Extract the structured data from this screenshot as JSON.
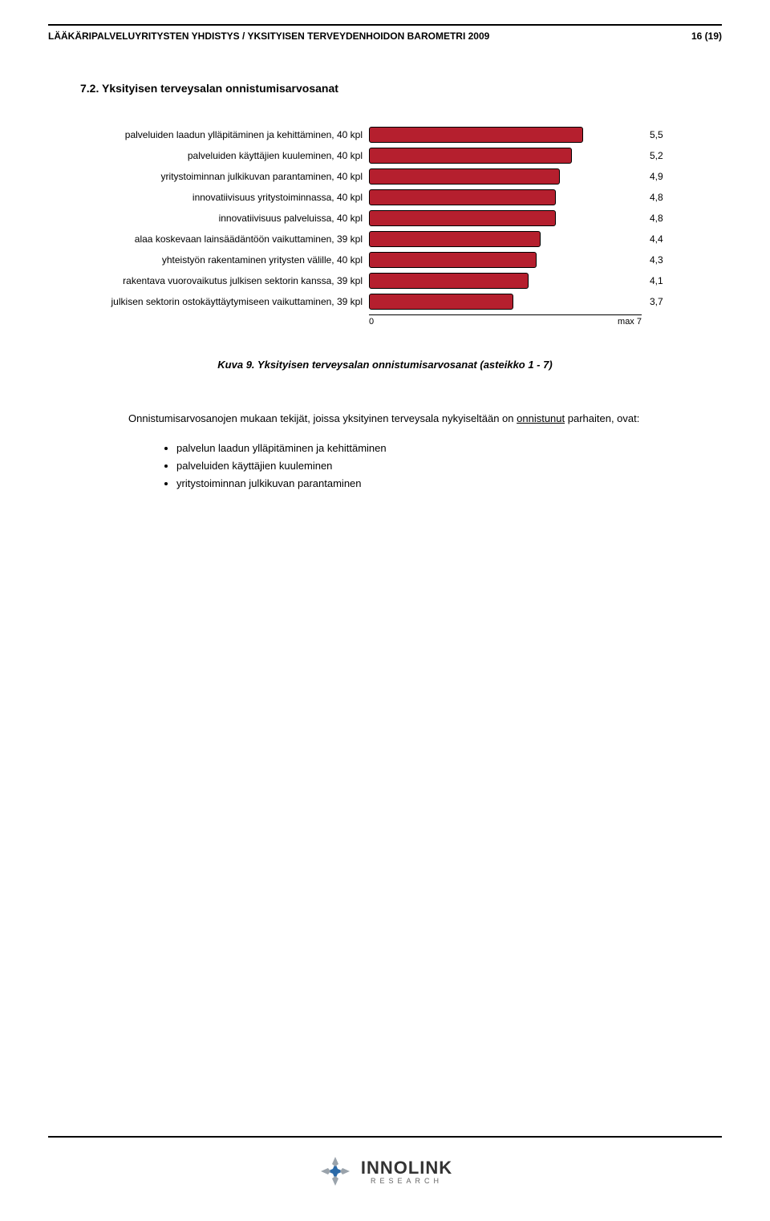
{
  "header": {
    "left": "LÄÄKÄRIPALVELUYRITYSTEN YHDISTYS / YKSITYISEN TERVEYDENHOIDON BAROMETRI 2009",
    "right": "16 (19)"
  },
  "section": {
    "number_title": "7.2. Yksityisen terveysalan onnistumisarvosanat"
  },
  "chart": {
    "type": "bar",
    "orientation": "horizontal",
    "max": 7,
    "bar_color": "#b51f2e",
    "bar_border": "#000000",
    "label_fontsize": 12,
    "value_fontsize": 12,
    "axis_min_label": "0",
    "axis_max_label": "max  7",
    "rows": [
      {
        "label": "palveluiden laadun ylläpitäminen ja kehittäminen, 40 kpl",
        "value": 5.5,
        "value_label": "5,5"
      },
      {
        "label": "palveluiden käyttäjien kuuleminen, 40 kpl",
        "value": 5.2,
        "value_label": "5,2"
      },
      {
        "label": "yritystoiminnan julkikuvan parantaminen, 40 kpl",
        "value": 4.9,
        "value_label": "4,9"
      },
      {
        "label": "innovatiivisuus yritystoiminnassa, 40 kpl",
        "value": 4.8,
        "value_label": "4,8"
      },
      {
        "label": "innovatiivisuus palveluissa, 40 kpl",
        "value": 4.8,
        "value_label": "4,8"
      },
      {
        "label": "alaa koskevaan lainsäädäntöön vaikuttaminen, 39 kpl",
        "value": 4.4,
        "value_label": "4,4"
      },
      {
        "label": "yhteistyön rakentaminen yritysten välille, 40 kpl",
        "value": 4.3,
        "value_label": "4,3"
      },
      {
        "label": "rakentava vuorovaikutus julkisen sektorin kanssa, 39 kpl",
        "value": 4.1,
        "value_label": "4,1"
      },
      {
        "label": "julkisen sektorin ostokäyttäytymiseen vaikuttaminen, 39 kpl",
        "value": 3.7,
        "value_label": "3,7"
      }
    ]
  },
  "caption": "Kuva 9. Yksityisen terveysalan onnistumisarvosanat (asteikko 1 - 7)",
  "paragraph": "Onnistumisarvosanojen mukaan tekijät, joissa yksityinen terveysala nykyiseltään on onnistunut parhaiten, ovat:",
  "paragraph_underline_word": "onnistunut",
  "bullets": [
    "palvelun laadun ylläpitäminen ja kehittäminen",
    "palveluiden käyttäjien kuuleminen",
    "yritystoiminnan julkikuvan parantaminen"
  ],
  "footer": {
    "logo_text": "INNOLINK",
    "logo_sub": "RESEARCH",
    "logo_colors": {
      "blue": "#2b6aa8",
      "grey": "#9aa3ab"
    }
  }
}
